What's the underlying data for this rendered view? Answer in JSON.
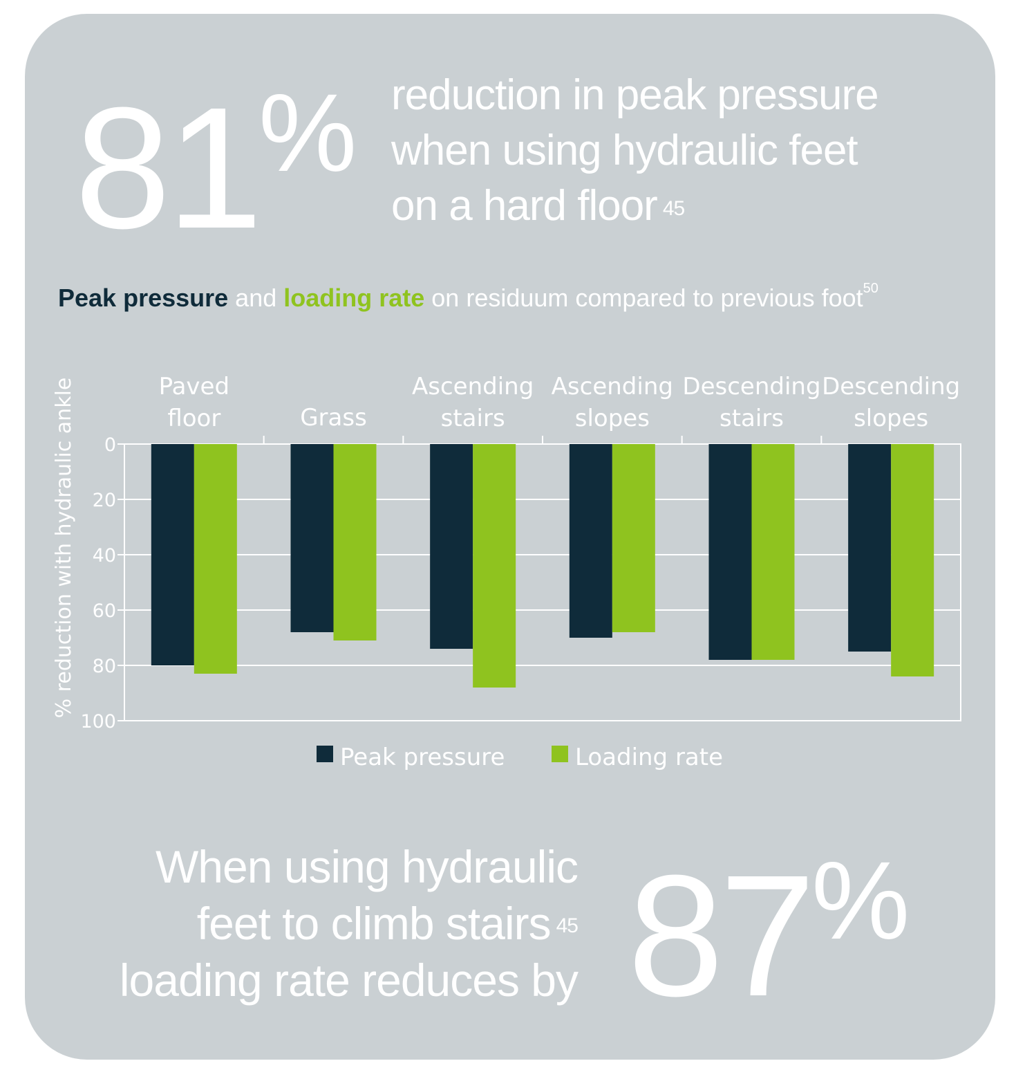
{
  "top_stat": {
    "number": "81",
    "percent": "%",
    "lines": [
      "reduction in peak pressure",
      "when using hydraulic feet",
      "on a hard floor"
    ],
    "footnote": "45"
  },
  "subtitle": {
    "part1": "Peak pressure",
    "part2": " and ",
    "part3": "loading rate",
    "part4": " on residuum compared to previous foot",
    "footnote": "50"
  },
  "bottom_stat": {
    "lines": [
      "When using hydraulic",
      "feet to climb stairs",
      "loading rate reduces by"
    ],
    "footnote": "45",
    "number": "87",
    "percent": "%"
  },
  "colors": {
    "background": "#cad0d3",
    "peak_pressure": "#0f2b3a",
    "loading_rate": "#8fc31f",
    "text": "#ffffff"
  },
  "chart_data": {
    "type": "bar",
    "categories": [
      [
        "Paved",
        "floor"
      ],
      [
        "Grass"
      ],
      [
        "Ascending",
        "stairs"
      ],
      [
        "Ascending",
        "slopes"
      ],
      [
        "Descending",
        "stairs"
      ],
      [
        "Descending",
        "slopes"
      ]
    ],
    "series": [
      {
        "name": "Peak pressure",
        "color": "#0f2b3a",
        "values": [
          80,
          68,
          74,
          70,
          78,
          75
        ]
      },
      {
        "name": "Loading rate",
        "color": "#8fc31f",
        "values": [
          83,
          71,
          88,
          68,
          78,
          84
        ]
      }
    ],
    "ylabel": "% reduction with hydraulic ankle",
    "ylim": [
      0,
      100
    ],
    "yticks": [
      0,
      20,
      40,
      60,
      80,
      100
    ],
    "y_inverted": true,
    "grid": true,
    "legend": "bottom"
  }
}
